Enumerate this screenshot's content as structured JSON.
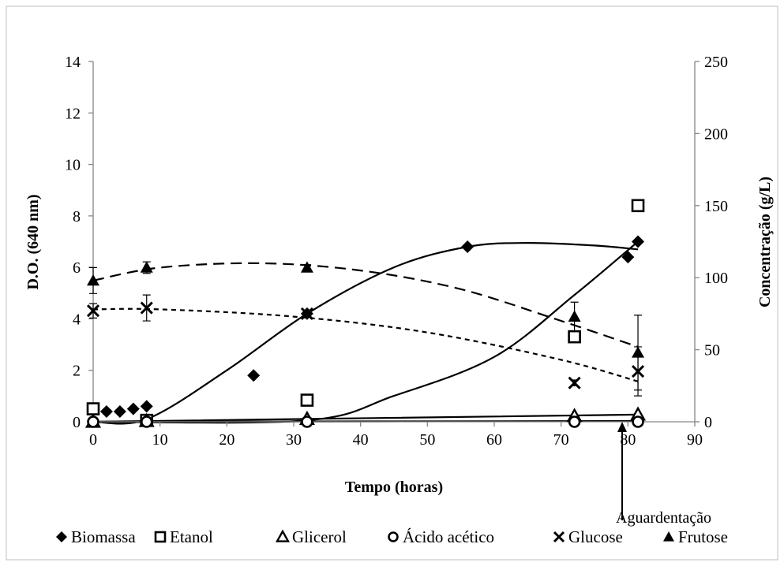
{
  "chart_data": {
    "type": "scatter",
    "xlabel": "Tempo (horas)",
    "ylabel": "D.O. (640 nm)",
    "y2label": "Concentração (g/L)",
    "xlim": [
      0,
      90
    ],
    "ylim": [
      0,
      14
    ],
    "y2lim": [
      0,
      250
    ],
    "x_ticks": [
      "0",
      "10",
      "20",
      "30",
      "40",
      "50",
      "60",
      "70",
      "80",
      "90"
    ],
    "y_ticks": [
      "0",
      "2",
      "4",
      "6",
      "8",
      "10",
      "12",
      "14"
    ],
    "y2_ticks": [
      "0",
      "50",
      "100",
      "150",
      "200",
      "250"
    ],
    "grid": false,
    "legend_position": "bottom",
    "annotation": "Aguardentação",
    "annotation_x": 81,
    "series": [
      {
        "name": "Biomassa",
        "axis": "left",
        "marker": "diamond",
        "x": [
          0,
          2,
          4,
          6,
          8,
          24,
          32,
          56,
          80,
          81.5
        ],
        "y": [
          0.5,
          0.4,
          0.4,
          0.5,
          0.6,
          1.8,
          4.2,
          6.8,
          6.4,
          7.0
        ],
        "fit_x": [
          0,
          8,
          20,
          32,
          45,
          56,
          65,
          75,
          81.5
        ],
        "fit_y": [
          0.0,
          0.1,
          2.0,
          4.2,
          6.0,
          6.8,
          6.95,
          6.85,
          6.7
        ]
      },
      {
        "name": "Etanol",
        "axis": "right",
        "marker": "square-open",
        "x": [
          0,
          8,
          32,
          72,
          81.5
        ],
        "y": [
          9,
          1,
          15,
          59,
          150
        ],
        "fit_x": [
          0,
          32,
          45,
          60,
          72,
          81.5
        ],
        "fit_y": [
          0,
          1,
          18,
          45,
          88,
          125
        ]
      },
      {
        "name": "Glicerol",
        "axis": "right",
        "marker": "triangle-open",
        "x": [
          0,
          8,
          32,
          72,
          81.5
        ],
        "y": [
          0,
          0.5,
          2,
          4,
          5
        ],
        "fit_x": [
          0,
          81.5
        ],
        "fit_y": [
          0,
          5
        ]
      },
      {
        "name": "Ácido acético",
        "axis": "right",
        "marker": "circle-open",
        "x": [
          0,
          8,
          32,
          72,
          81.5
        ],
        "y": [
          0,
          0,
          0,
          0,
          0
        ],
        "fit_x": [
          0,
          81.5
        ],
        "fit_y": [
          0,
          0.5
        ]
      },
      {
        "name": "Glucose",
        "axis": "right",
        "marker": "x",
        "x": [
          0,
          8,
          32,
          72,
          81.5
        ],
        "y": [
          77,
          79,
          75,
          27,
          35
        ],
        "err": [
          5,
          9,
          2,
          2,
          17
        ],
        "fit_x": [
          0,
          10,
          30,
          50,
          70,
          81.5
        ],
        "fit_y": [
          78,
          78,
          73,
          62,
          43,
          28
        ]
      },
      {
        "name": "Frutose",
        "axis": "right",
        "marker": "triangle",
        "x": [
          0,
          8,
          32,
          72,
          81.5
        ],
        "y": [
          98,
          107,
          107,
          73,
          48
        ],
        "err": [
          9,
          4,
          2,
          10,
          26
        ],
        "fit_x": [
          0,
          10,
          25,
          40,
          55,
          70,
          81.5
        ],
        "fit_y": [
          98,
          107,
          110,
          105,
          92,
          70,
          52
        ]
      }
    ]
  }
}
